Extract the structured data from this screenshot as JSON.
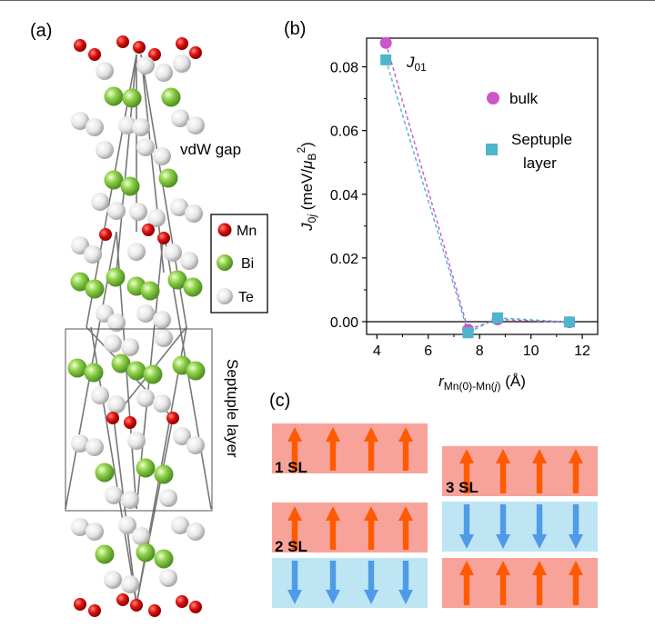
{
  "panels": {
    "a_label": "(a)",
    "b_label": "(b)",
    "c_label": "(c)"
  },
  "crystal": {
    "vdw_gap_label": "vdW gap",
    "septuple_label": "Septuple layer",
    "legend": [
      {
        "name": "Mn",
        "color": "#e01010"
      },
      {
        "name": "Bi",
        "color": "#8ed14a"
      },
      {
        "name": "Te",
        "color": "#e6e6e6"
      }
    ]
  },
  "chart_data": {
    "type": "scatter",
    "title": "",
    "xlabel": "r_Mn(0)-Mn(j) (Å)",
    "ylabel": "J_0j (meV/μ_B^2)",
    "xlim": [
      3.6,
      12.6
    ],
    "ylim": [
      -0.004,
      0.089
    ],
    "xticks": [
      4,
      6,
      8,
      10,
      12
    ],
    "xtick_labels": [
      "4",
      "6",
      "8",
      "10",
      "12"
    ],
    "yticks": [
      0.0,
      0.02,
      0.04,
      0.06,
      0.08
    ],
    "ytick_labels": [
      "0.00",
      "0.02",
      "0.04",
      "0.06",
      "0.08"
    ],
    "zero_line": true,
    "annotation": "J01",
    "series": [
      {
        "name": "bulk",
        "marker": "circle",
        "color": "#cc55cc",
        "x": [
          4.35,
          7.55,
          8.7,
          11.5
        ],
        "y": [
          0.0875,
          -0.0025,
          0.0007,
          -0.0002
        ]
      },
      {
        "name": "Septuple layer",
        "marker": "square",
        "color": "#4bb6cc",
        "x": [
          4.35,
          7.55,
          8.7,
          11.5
        ],
        "y": [
          0.0822,
          -0.0035,
          0.0012,
          -0.0001
        ]
      }
    ],
    "legend": [
      "bulk",
      "Septuple",
      "layer"
    ]
  },
  "layers": {
    "labels": [
      "1 SL",
      "2 SL",
      "3 SL"
    ],
    "colors": {
      "up": "#f7a39a",
      "down": "#bde5f3",
      "up_arrow": "#ff5a00",
      "down_arrow": "#4f9be8"
    }
  }
}
